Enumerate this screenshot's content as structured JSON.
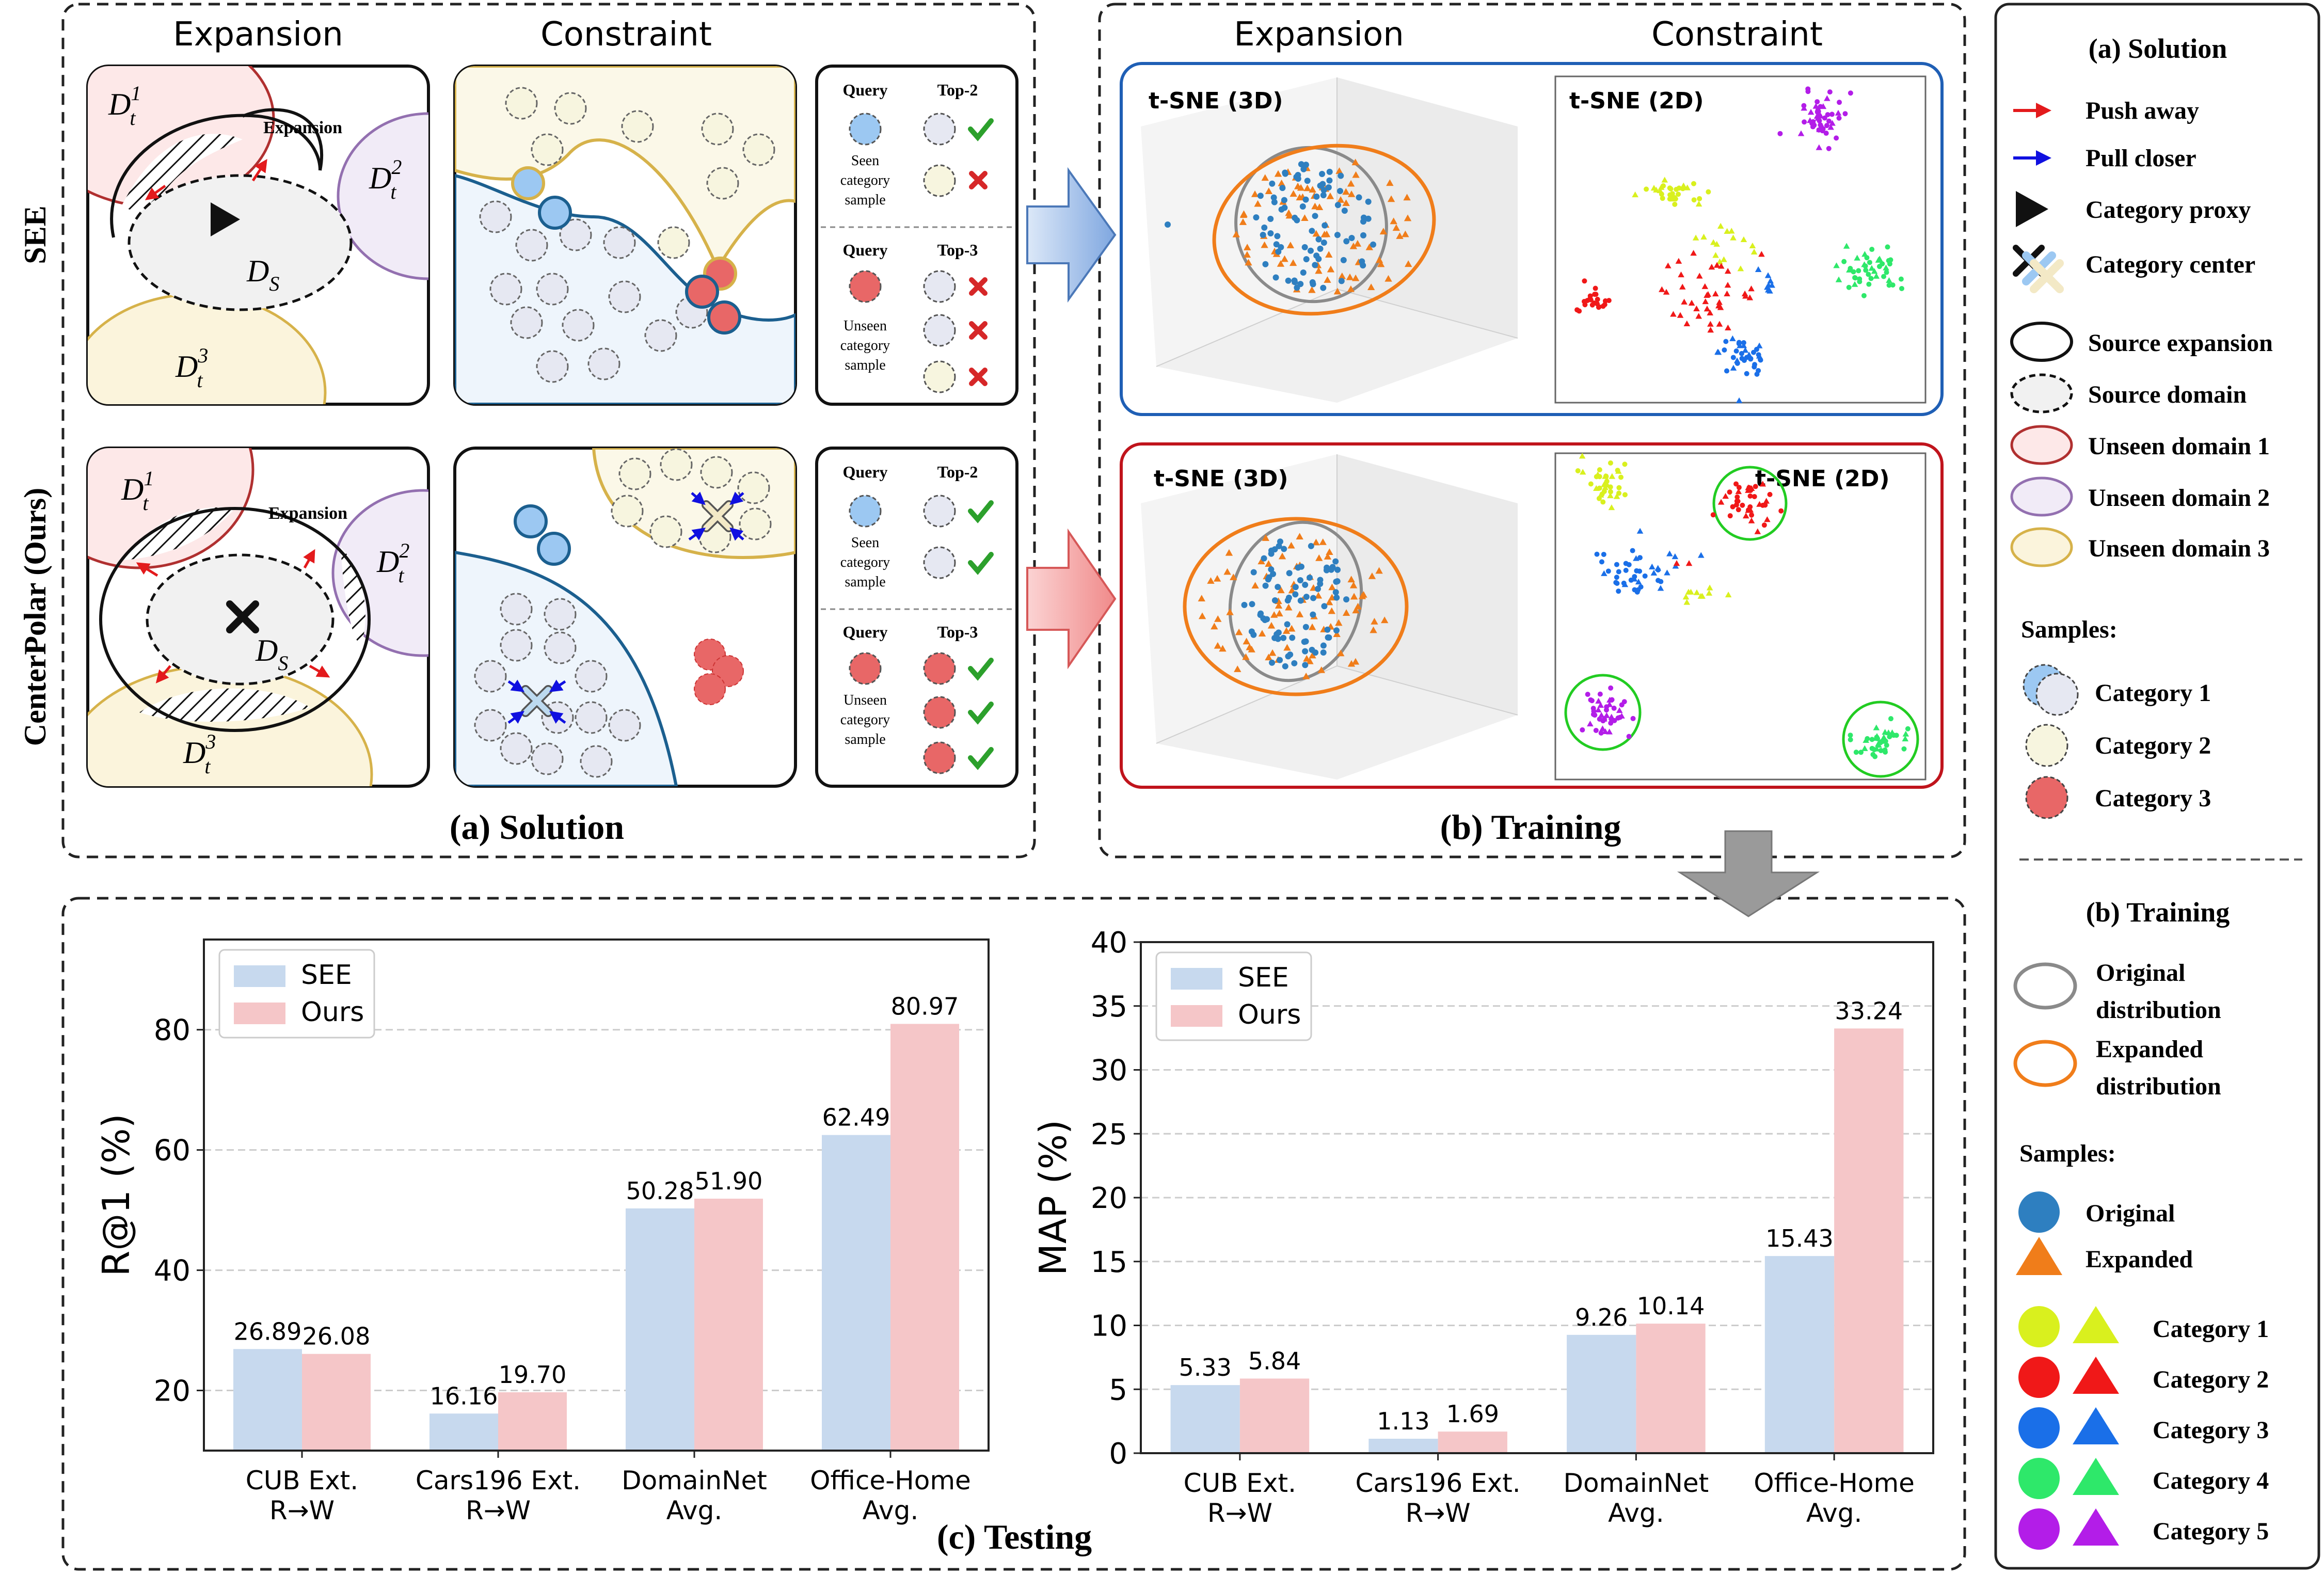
{
  "solution": {
    "title": "(a) Solution",
    "expansion_header": "Expansion",
    "constraint_header": "Constraint",
    "row_labels": [
      "SEE",
      "CenterPolar (Ours)"
    ],
    "diagram": {
      "Dt1": "D",
      "Dt1_sup": "1",
      "Dt1_sub": "t",
      "Dt2": "D",
      "Dt2_sup": "2",
      "Dt2_sub": "t",
      "Dt3": "D",
      "Dt3_sup": "3",
      "Dt3_sub": "t",
      "DS": "D",
      "DS_sub": "S",
      "expansion_label": "Expansion"
    },
    "table_see": {
      "seen_query": "Query",
      "seen_top": "Top-2",
      "seen_desc": [
        "Seen",
        "category",
        "sample"
      ],
      "unseen_query": "Query",
      "unseen_top": "Top-3",
      "unseen_desc": [
        "Unseen",
        "category",
        "sample"
      ]
    },
    "table_ours": {
      "seen_query": "Query",
      "seen_top": "Top-2",
      "seen_desc": [
        "Seen",
        "category",
        "sample"
      ],
      "unseen_query": "Query",
      "unseen_top": "Top-3",
      "unseen_desc": [
        "Unseen",
        "category",
        "sample"
      ]
    }
  },
  "training": {
    "title": "(b) Training",
    "expansion_header": "Expansion",
    "constraint_header": "Constraint",
    "see_3d": "t-SNE (3D)",
    "see_2d": "t-SNE (2D)",
    "ours_3d": "t-SNE (3D)",
    "ours_2d": "t-SNE (2D)"
  },
  "testing": {
    "title": "(c) Testing"
  },
  "legend": {
    "solution_title": "(a) Solution",
    "push_away": "Push away",
    "pull_closer": "Pull closer",
    "category_proxy": "Category proxy",
    "category_center": "Category center",
    "source_expansion": "Source expansion",
    "source_domain": "Source domain",
    "unseen1": "Unseen domain 1",
    "unseen2": "Unseen domain 2",
    "unseen3": "Unseen domain 3",
    "samples_title": "Samples:",
    "cat1": "Category 1",
    "cat2": "Category 2",
    "cat3": "Category 3",
    "training_title": "(b) Training",
    "orig_dist_1": "Original",
    "orig_dist_2": "distribution",
    "exp_dist_1": "Expanded",
    "exp_dist_2": "distribution",
    "samples_title2": "Samples:",
    "original": "Original",
    "expanded": "Expanded",
    "c1": "Category 1",
    "c2": "Category 2",
    "c3": "Category 3",
    "c4": "Category 4",
    "c5": "Category 5"
  },
  "colors": {
    "see_bar": "#c7d9ee",
    "ours_bar": "#f5c6c8",
    "blue_panel": "#1f5fb5",
    "red_panel": "#c0141c",
    "orange": "#f07d1a",
    "gray_dist": "#8a8a8a"
  },
  "chart_data": [
    {
      "type": "bar",
      "ylabel": "R@1 (%)",
      "categories": [
        "CUB Ext.\nR→W",
        "Cars196 Ext.\nR→W",
        "DomainNet\nAvg.",
        "Office-Home\nAvg."
      ],
      "category_lines": [
        [
          "CUB Ext.",
          "R→W"
        ],
        [
          "Cars196 Ext.",
          "R→W"
        ],
        [
          "DomainNet",
          "Avg."
        ],
        [
          "Office-Home",
          "Avg."
        ]
      ],
      "series": [
        {
          "name": "SEE",
          "values": [
            26.89,
            16.16,
            50.28,
            62.49
          ]
        },
        {
          "name": "Ours",
          "values": [
            26.08,
            19.7,
            51.9,
            80.97
          ]
        }
      ],
      "value_labels": [
        [
          "26.89",
          "16.16",
          "50.28",
          "62.49"
        ],
        [
          "26.08",
          "19.70",
          "51.90",
          "80.97"
        ]
      ],
      "ylim": [
        10,
        95
      ],
      "yticks": [
        20,
        40,
        60,
        80
      ],
      "legend": "top-left",
      "grid": true
    },
    {
      "type": "bar",
      "ylabel": "MAP (%)",
      "categories": [
        "CUB Ext.\nR→W",
        "Cars196 Ext.\nR→W",
        "DomainNet\nAvg.",
        "Office-Home\nAvg."
      ],
      "category_lines": [
        [
          "CUB Ext.",
          "R→W"
        ],
        [
          "Cars196 Ext.",
          "R→W"
        ],
        [
          "DomainNet",
          "Avg."
        ],
        [
          "Office-Home",
          "Avg."
        ]
      ],
      "series": [
        {
          "name": "SEE",
          "values": [
            5.33,
            1.13,
            9.26,
            15.43
          ]
        },
        {
          "name": "Ours",
          "values": [
            5.84,
            1.69,
            10.14,
            33.24
          ]
        }
      ],
      "value_labels": [
        [
          "5.33",
          "1.13",
          "9.26",
          "15.43"
        ],
        [
          "5.84",
          "1.69",
          "10.14",
          "33.24"
        ]
      ],
      "ylim": [
        0,
        40
      ],
      "yticks": [
        0,
        5,
        10,
        15,
        20,
        25,
        30,
        35,
        40
      ],
      "legend": "top-left",
      "grid": true
    }
  ]
}
